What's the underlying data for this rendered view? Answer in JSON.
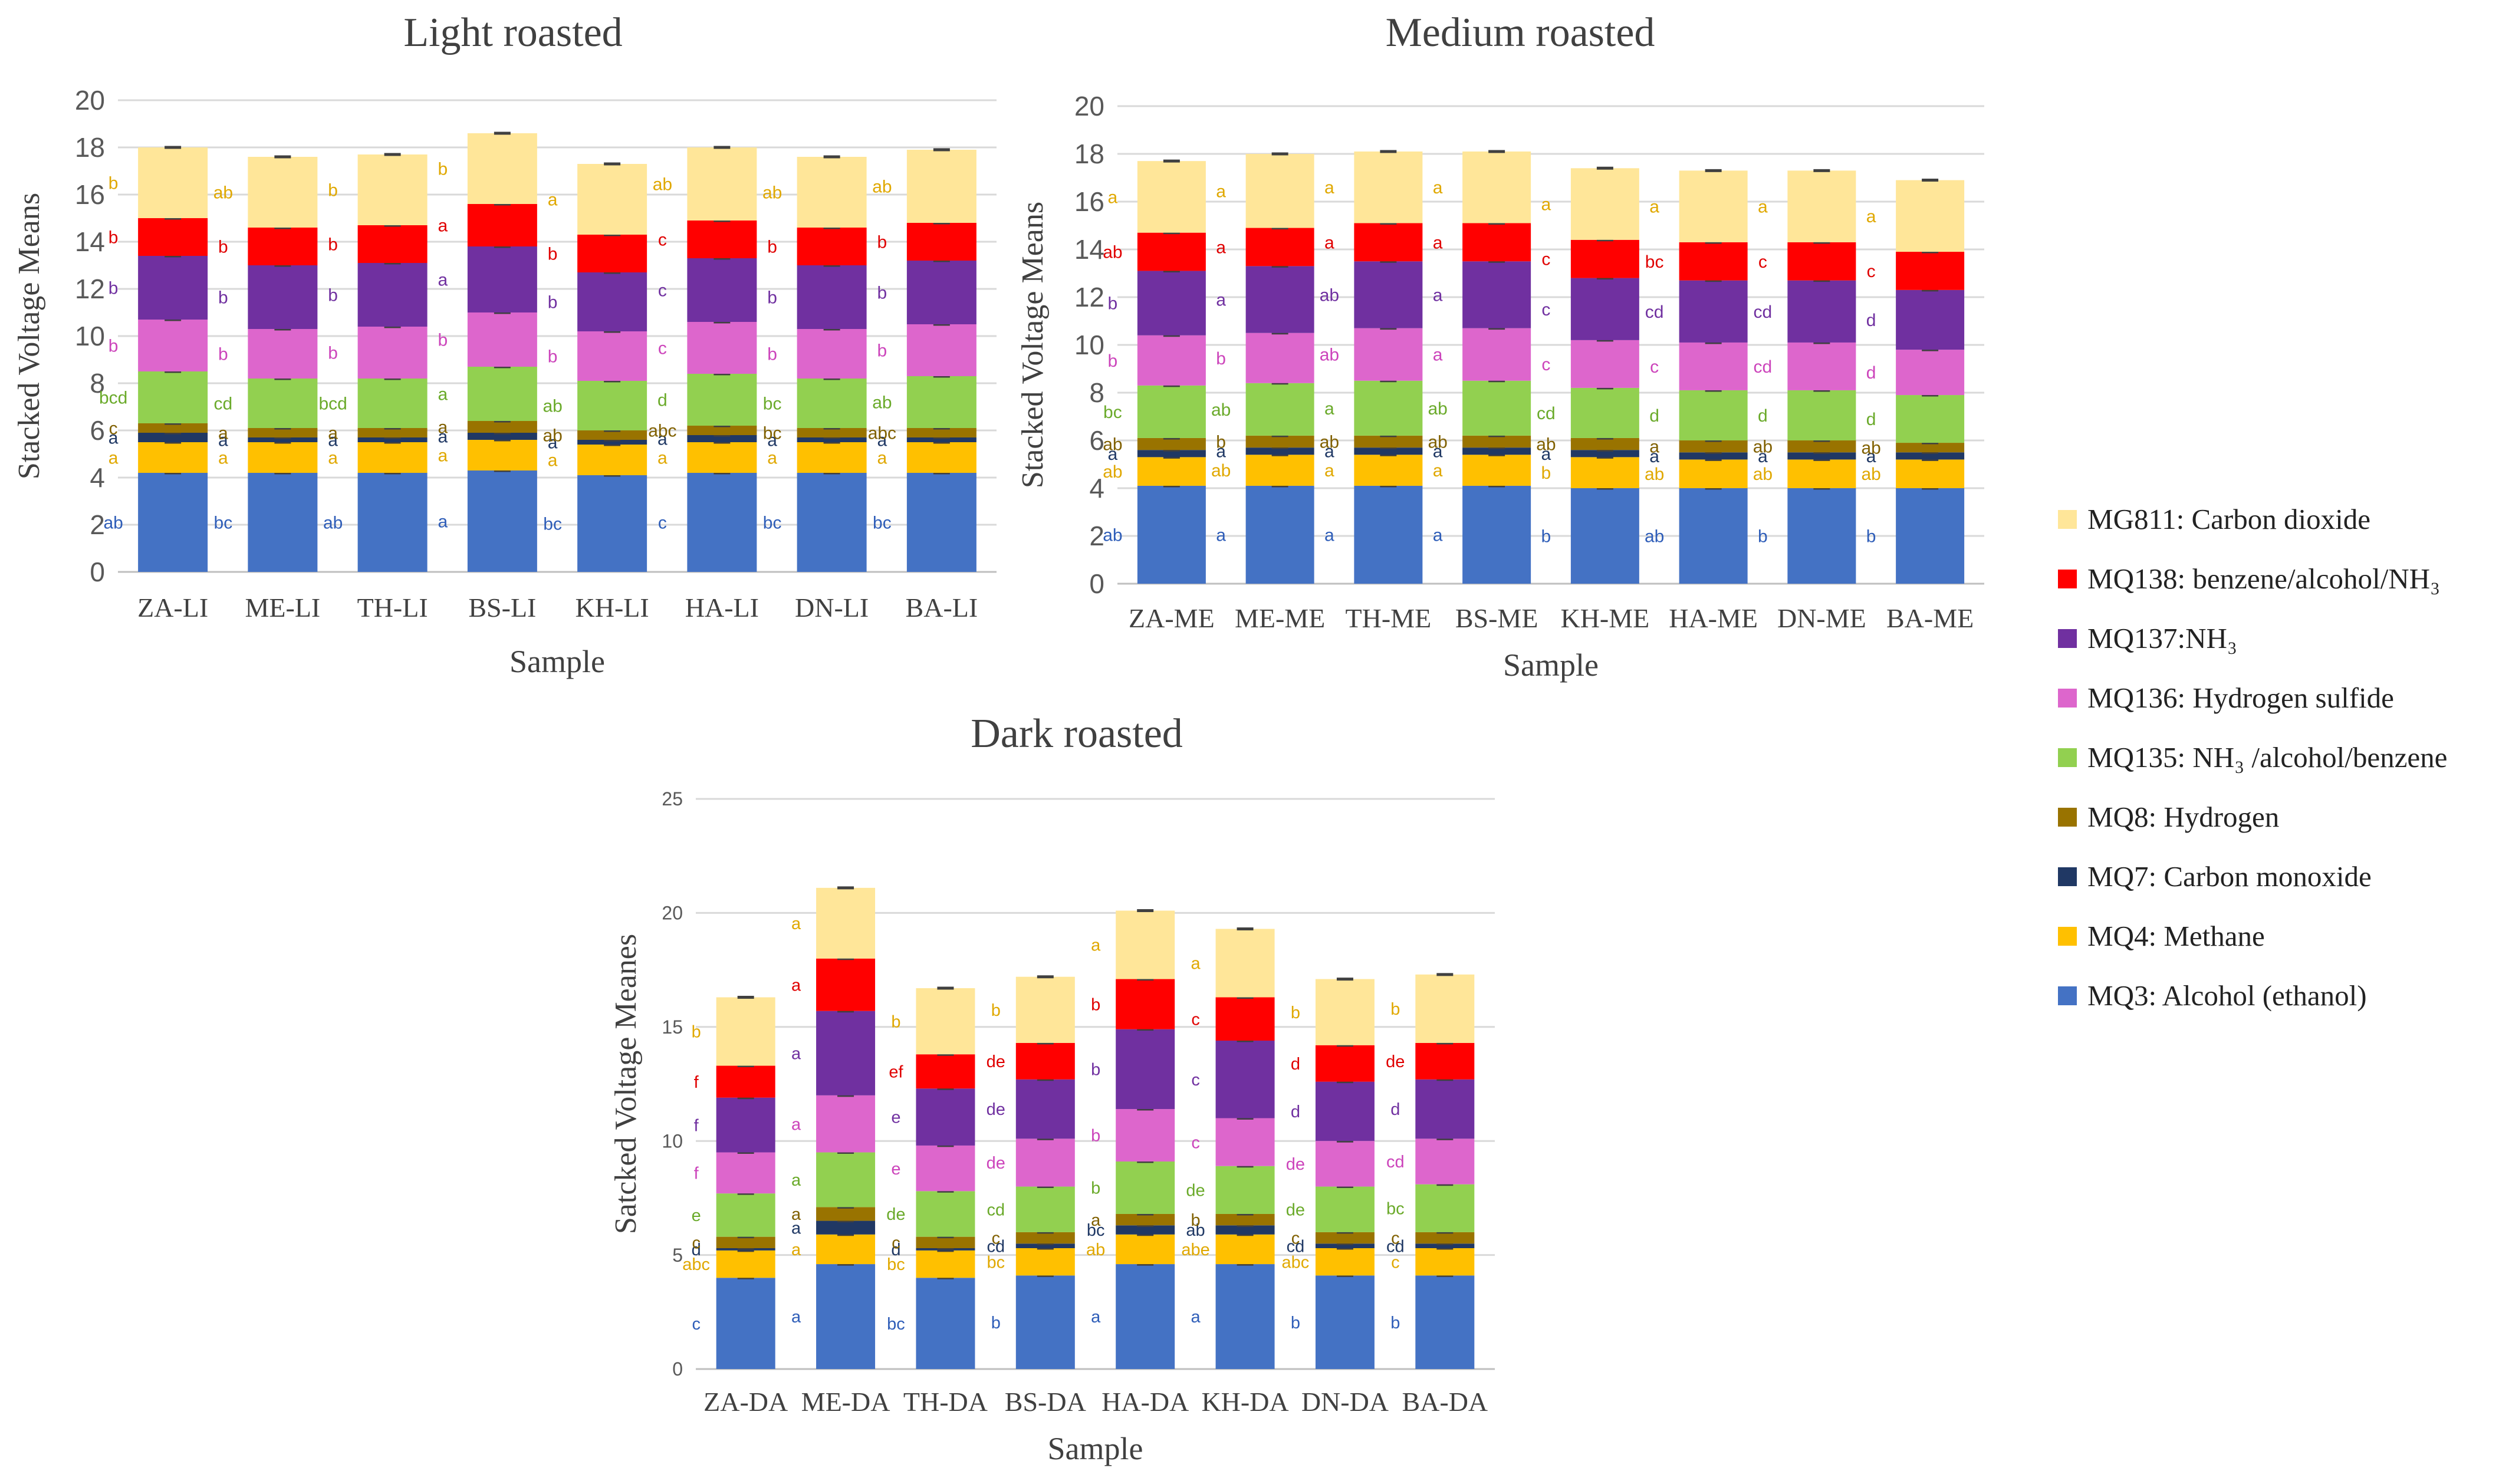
{
  "series": [
    {
      "key": "MQ3",
      "legend": "MQ3: Alcohol (ethanol)",
      "color": "#4472C4"
    },
    {
      "key": "MQ4",
      "legend": "MQ4: Methane",
      "color": "#FFC000"
    },
    {
      "key": "MQ7",
      "legend": "MQ7: Carbon monoxide",
      "color": "#203864"
    },
    {
      "key": "MQ8",
      "legend": "MQ8: Hydrogen",
      "color": "#997300"
    },
    {
      "key": "MQ135",
      "legend": "MQ135: NH₃ /alcohol/benzene",
      "color": "#92D050"
    },
    {
      "key": "MQ136",
      "legend": "MQ136: Hydrogen sulfide",
      "color": "#DD66CC"
    },
    {
      "key": "MQ137",
      "legend": "MQ137:NH₃",
      "color": "#7030A0"
    },
    {
      "key": "MQ138",
      "legend": "MQ138: benzene/alcohol/NH₃",
      "color": "#FF0000"
    },
    {
      "key": "MG811",
      "legend": "MG811: Carbon dioxide",
      "color": "#FFE699"
    }
  ],
  "legend_order": [
    "MG811",
    "MQ138",
    "MQ137",
    "MQ136",
    "MQ135",
    "MQ8",
    "MQ7",
    "MQ4",
    "MQ3"
  ],
  "chart_data": [
    {
      "type": "bar",
      "stacked": true,
      "title": "Light roasted",
      "xlabel": "Sample",
      "ylabel": "Stacked Voltage Means",
      "ylim": [
        0,
        20
      ],
      "yticks": [
        0,
        2,
        4,
        6,
        8,
        10,
        12,
        14,
        16,
        18,
        20
      ],
      "categories": [
        "ZA-LI",
        "ME-LI",
        "TH-LI",
        "BS-LI",
        "KH-LI",
        "HA-LI",
        "DN-LI",
        "BA-LI"
      ],
      "series": [
        {
          "name": "MQ3",
          "values": [
            4.2,
            4.2,
            4.2,
            4.3,
            4.1,
            4.2,
            4.2,
            4.2
          ],
          "letters": [
            "ab",
            "bc",
            "ab",
            "a",
            "bc",
            "c",
            "bc",
            "bc"
          ]
        },
        {
          "name": "MQ4",
          "values": [
            1.3,
            1.3,
            1.3,
            1.3,
            1.3,
            1.3,
            1.3,
            1.3
          ],
          "letters": [
            "a",
            "a",
            "a",
            "a",
            "a",
            "a",
            "a",
            "a"
          ]
        },
        {
          "name": "MQ7",
          "values": [
            0.4,
            0.2,
            0.2,
            0.3,
            0.2,
            0.3,
            0.2,
            0.2
          ],
          "letters": [
            "a",
            "a",
            "a",
            "a",
            "a",
            "a",
            "a",
            "a"
          ]
        },
        {
          "name": "MQ8",
          "values": [
            0.4,
            0.4,
            0.4,
            0.5,
            0.4,
            0.4,
            0.4,
            0.4
          ],
          "letters": [
            "c",
            "a",
            "a",
            "a",
            "ab",
            "abc",
            "bc",
            "abc"
          ]
        },
        {
          "name": "MQ135",
          "values": [
            2.2,
            2.1,
            2.1,
            2.3,
            2.1,
            2.2,
            2.1,
            2.2
          ],
          "letters": [
            "bcd",
            "cd",
            "bcd",
            "a",
            "ab",
            "d",
            "bc",
            "ab"
          ]
        },
        {
          "name": "MQ136",
          "values": [
            2.2,
            2.1,
            2.2,
            2.3,
            2.1,
            2.2,
            2.1,
            2.2
          ],
          "letters": [
            "b",
            "b",
            "b",
            "b",
            "b",
            "c",
            "b",
            "b"
          ]
        },
        {
          "name": "MQ137",
          "values": [
            2.7,
            2.7,
            2.7,
            2.8,
            2.5,
            2.7,
            2.7,
            2.7
          ],
          "letters": [
            "b",
            "b",
            "b",
            "a",
            "b",
            "c",
            "b",
            "b"
          ]
        },
        {
          "name": "MQ138",
          "values": [
            1.6,
            1.6,
            1.6,
            1.8,
            1.6,
            1.6,
            1.6,
            1.6
          ],
          "letters": [
            "b",
            "b",
            "b",
            "a",
            "b",
            "c",
            "b",
            "b"
          ]
        },
        {
          "name": "MG811",
          "values": [
            3.0,
            3.0,
            3.0,
            3.0,
            3.0,
            3.1,
            3.0,
            3.1
          ],
          "letters": [
            "b",
            "ab",
            "b",
            "b",
            "a",
            "ab",
            "ab",
            "ab"
          ]
        }
      ]
    },
    {
      "type": "bar",
      "stacked": true,
      "title": "Medium roasted",
      "xlabel": "Sample",
      "ylabel": "Stacked Voltage Means",
      "ylim": [
        0,
        20
      ],
      "yticks": [
        0,
        2,
        4,
        6,
        8,
        10,
        12,
        14,
        16,
        18,
        20
      ],
      "categories": [
        "ZA-ME",
        "ME-ME",
        "TH-ME",
        "BS-ME",
        "KH-ME",
        "HA-ME",
        "DN-ME",
        "BA-ME"
      ],
      "series": [
        {
          "name": "MQ3",
          "values": [
            4.1,
            4.1,
            4.1,
            4.1,
            4.0,
            4.0,
            4.0,
            4.0
          ],
          "letters": [
            "ab",
            "a",
            "a",
            "a",
            "b",
            "ab",
            "b",
            "b"
          ]
        },
        {
          "name": "MQ4",
          "values": [
            1.2,
            1.3,
            1.3,
            1.3,
            1.3,
            1.2,
            1.2,
            1.2
          ],
          "letters": [
            "ab",
            "ab",
            "a",
            "a",
            "b",
            "ab",
            "ab",
            "ab"
          ]
        },
        {
          "name": "MQ7",
          "values": [
            0.3,
            0.3,
            0.3,
            0.3,
            0.3,
            0.3,
            0.3,
            0.3
          ],
          "letters": [
            "a",
            "a",
            "a",
            "a",
            "a",
            "a",
            "a",
            "a"
          ]
        },
        {
          "name": "MQ8",
          "values": [
            0.5,
            0.5,
            0.5,
            0.5,
            0.5,
            0.5,
            0.5,
            0.4
          ],
          "letters": [
            "ab",
            "b",
            "ab",
            "ab",
            "ab",
            "a",
            "ab",
            "ab"
          ]
        },
        {
          "name": "MQ135",
          "values": [
            2.2,
            2.2,
            2.3,
            2.3,
            2.1,
            2.1,
            2.1,
            2.0
          ],
          "letters": [
            "bc",
            "ab",
            "a",
            "ab",
            "cd",
            "d",
            "d",
            "d"
          ]
        },
        {
          "name": "MQ136",
          "values": [
            2.1,
            2.1,
            2.2,
            2.2,
            2.0,
            2.0,
            2.0,
            1.9
          ],
          "letters": [
            "b",
            "b",
            "ab",
            "a",
            "c",
            "c",
            "cd",
            "d"
          ]
        },
        {
          "name": "MQ137",
          "values": [
            2.7,
            2.8,
            2.8,
            2.8,
            2.6,
            2.6,
            2.6,
            2.5
          ],
          "letters": [
            "b",
            "a",
            "ab",
            "a",
            "c",
            "cd",
            "cd",
            "d"
          ]
        },
        {
          "name": "MQ138",
          "values": [
            1.6,
            1.6,
            1.6,
            1.6,
            1.6,
            1.6,
            1.6,
            1.6
          ],
          "letters": [
            "ab",
            "a",
            "a",
            "a",
            "c",
            "bc",
            "c",
            "c"
          ]
        },
        {
          "name": "MG811",
          "values": [
            3.0,
            3.1,
            3.0,
            3.0,
            3.0,
            3.0,
            3.0,
            3.0
          ],
          "letters": [
            "a",
            "a",
            "a",
            "a",
            "a",
            "a",
            "a",
            "a"
          ]
        }
      ]
    },
    {
      "type": "bar",
      "stacked": true,
      "title": "Dark roasted",
      "xlabel": "Sample",
      "ylabel": "Satcked Voltage Meanes",
      "ylim": [
        0,
        25
      ],
      "yticks": [
        0,
        5,
        10,
        15,
        20,
        25
      ],
      "categories": [
        "ZA-DA",
        "ME-DA",
        "TH-DA",
        "BS-DA",
        "HA-DA",
        "KH-DA",
        "DN-DA",
        "BA-DA"
      ],
      "series": [
        {
          "name": "MQ3",
          "values": [
            4.0,
            4.6,
            4.0,
            4.1,
            4.6,
            4.6,
            4.1,
            4.1
          ],
          "letters": [
            "c",
            "a",
            "bc",
            "b",
            "a",
            "a",
            "b",
            "b"
          ]
        },
        {
          "name": "MQ4",
          "values": [
            1.2,
            1.3,
            1.2,
            1.2,
            1.3,
            1.3,
            1.2,
            1.2
          ],
          "letters": [
            "abc",
            "a",
            "bc",
            "bc",
            "ab",
            "abe",
            "abc",
            "c"
          ]
        },
        {
          "name": "MQ7",
          "values": [
            0.1,
            0.6,
            0.1,
            0.2,
            0.4,
            0.4,
            0.2,
            0.2
          ],
          "letters": [
            "d",
            "a",
            "d",
            "cd",
            "bc",
            "ab",
            "cd",
            "cd"
          ]
        },
        {
          "name": "MQ8",
          "values": [
            0.5,
            0.6,
            0.5,
            0.5,
            0.5,
            0.5,
            0.5,
            0.5
          ],
          "letters": [
            "c",
            "a",
            "c",
            "c",
            "a",
            "b",
            "c",
            "c"
          ]
        },
        {
          "name": "MQ135",
          "values": [
            1.9,
            2.4,
            2.0,
            2.0,
            2.3,
            2.1,
            2.0,
            2.1
          ],
          "letters": [
            "e",
            "a",
            "de",
            "cd",
            "b",
            "de",
            "de",
            "bc"
          ]
        },
        {
          "name": "MQ136",
          "values": [
            1.8,
            2.5,
            2.0,
            2.1,
            2.3,
            2.1,
            2.0,
            2.0
          ],
          "letters": [
            "f",
            "a",
            "e",
            "de",
            "b",
            "c",
            "de",
            "cd"
          ]
        },
        {
          "name": "MQ137",
          "values": [
            2.4,
            3.7,
            2.5,
            2.6,
            3.5,
            3.4,
            2.6,
            2.6
          ],
          "letters": [
            "f",
            "a",
            "e",
            "de",
            "b",
            "c",
            "d",
            "d"
          ]
        },
        {
          "name": "MQ138",
          "values": [
            1.4,
            2.3,
            1.5,
            1.6,
            2.2,
            1.9,
            1.6,
            1.6
          ],
          "letters": [
            "f",
            "a",
            "ef",
            "de",
            "b",
            "c",
            "d",
            "de"
          ]
        },
        {
          "name": "MG811",
          "values": [
            3.0,
            3.1,
            2.9,
            2.9,
            3.0,
            3.0,
            2.9,
            3.0
          ],
          "letters": [
            "b",
            "a",
            "b",
            "b",
            "a",
            "a",
            "b",
            "b"
          ]
        }
      ]
    }
  ]
}
